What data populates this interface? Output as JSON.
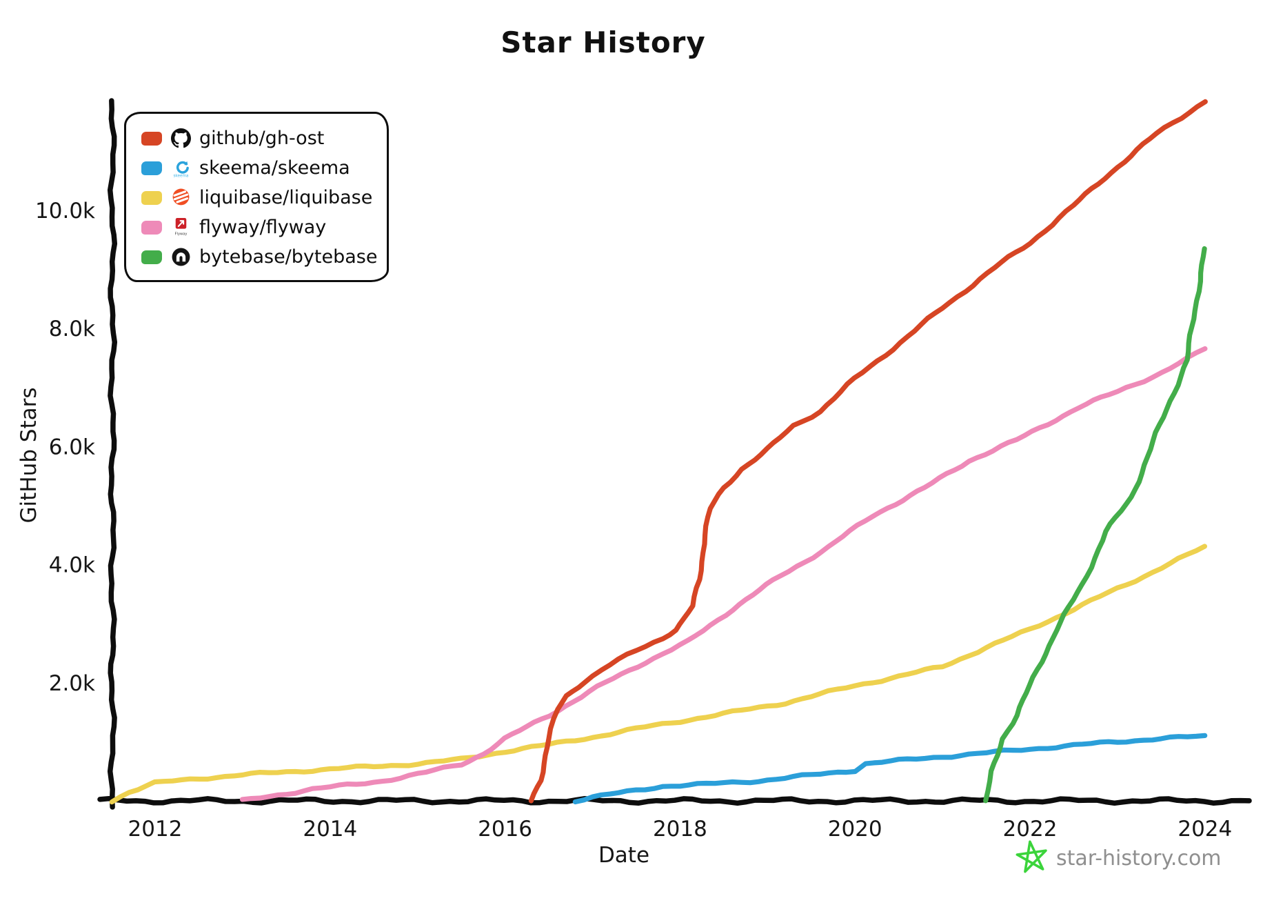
{
  "title": "Star History",
  "x_axis": {
    "label": "Date",
    "ticks": [
      "2012",
      "2014",
      "2016",
      "2018",
      "2020",
      "2022",
      "2024"
    ],
    "tick_values": [
      2012,
      2014,
      2016,
      2018,
      2020,
      2022,
      2024
    ]
  },
  "y_axis": {
    "label": "GitHub Stars",
    "ticks": [
      "2.0k",
      "4.0k",
      "6.0k",
      "8.0k",
      "10.0k"
    ],
    "tick_values": [
      2000,
      4000,
      6000,
      8000,
      10000
    ]
  },
  "footer": {
    "site": "star-history.com",
    "star_color": "#3bd43b"
  },
  "legend": [
    {
      "repo": "github/gh-ost",
      "color": "#d64524",
      "icon": "github-icon"
    },
    {
      "repo": "skeema/skeema",
      "color": "#2b9fd9",
      "icon": "skeema-icon"
    },
    {
      "repo": "liquibase/liquibase",
      "color": "#eed14f",
      "icon": "liquibase-icon"
    },
    {
      "repo": "flyway/flyway",
      "color": "#ee8ab8",
      "icon": "flyway-icon"
    },
    {
      "repo": "bytebase/bytebase",
      "color": "#43ad4a",
      "icon": "bytebase-icon"
    }
  ],
  "chart_data": {
    "type": "line",
    "title": "Star History",
    "xlabel": "Date",
    "ylabel": "GitHub Stars",
    "x_range": [
      2011.5,
      2024.45
    ],
    "ylim": [
      0,
      12000
    ],
    "x_ticks": [
      2012,
      2014,
      2016,
      2018,
      2020,
      2022,
      2024
    ],
    "y_ticks": [
      2000,
      4000,
      6000,
      8000,
      10000
    ],
    "grid": false,
    "legend_position": "top-left",
    "series": [
      {
        "name": "liquibase/liquibase",
        "color": "#eed14f",
        "points": [
          [
            2011.5,
            0
          ],
          [
            2011.7,
            150
          ],
          [
            2012.0,
            300
          ],
          [
            2012.5,
            380
          ],
          [
            2013.0,
            440
          ],
          [
            2013.5,
            490
          ],
          [
            2014.0,
            540
          ],
          [
            2014.5,
            580
          ],
          [
            2015.0,
            630
          ],
          [
            2015.5,
            700
          ],
          [
            2016.0,
            840
          ],
          [
            2016.5,
            950
          ],
          [
            2017.0,
            1080
          ],
          [
            2017.5,
            1220
          ],
          [
            2018.0,
            1350
          ],
          [
            2018.6,
            1500
          ],
          [
            2019.2,
            1660
          ],
          [
            2020.0,
            1950
          ],
          [
            2021.0,
            2270
          ],
          [
            2021.5,
            2600
          ],
          [
            2022.0,
            2900
          ],
          [
            2022.5,
            3250
          ],
          [
            2023.1,
            3660
          ],
          [
            2023.5,
            3950
          ],
          [
            2024.0,
            4300
          ]
        ]
      },
      {
        "name": "flyway/flyway",
        "color": "#ee8ab8",
        "points": [
          [
            2013.0,
            0
          ],
          [
            2013.4,
            100
          ],
          [
            2013.8,
            200
          ],
          [
            2014.3,
            280
          ],
          [
            2014.6,
            340
          ],
          [
            2015.1,
            480
          ],
          [
            2015.5,
            620
          ],
          [
            2015.75,
            800
          ],
          [
            2016.0,
            1050
          ],
          [
            2016.5,
            1450
          ],
          [
            2017.15,
            2000
          ],
          [
            2017.6,
            2350
          ],
          [
            2018.1,
            2700
          ],
          [
            2018.6,
            3250
          ],
          [
            2019.15,
            3810
          ],
          [
            2019.7,
            4300
          ],
          [
            2020.2,
            4830
          ],
          [
            2020.8,
            5300
          ],
          [
            2021.3,
            5760
          ],
          [
            2021.85,
            6110
          ],
          [
            2022.55,
            6660
          ],
          [
            2023.0,
            6930
          ],
          [
            2023.5,
            7250
          ],
          [
            2023.8,
            7480
          ],
          [
            2024.0,
            7660
          ]
        ]
      },
      {
        "name": "skeema/skeema",
        "color": "#2b9fd9",
        "points": [
          [
            2016.8,
            0
          ],
          [
            2017.0,
            60
          ],
          [
            2017.3,
            130
          ],
          [
            2017.8,
            250
          ],
          [
            2018.3,
            280
          ],
          [
            2018.9,
            340
          ],
          [
            2019.6,
            450
          ],
          [
            2020.0,
            520
          ],
          [
            2020.12,
            630
          ],
          [
            2020.5,
            680
          ],
          [
            2021.0,
            750
          ],
          [
            2021.5,
            810
          ],
          [
            2022.0,
            880
          ],
          [
            2022.5,
            940
          ],
          [
            2023.0,
            1000
          ],
          [
            2023.5,
            1060
          ],
          [
            2024.0,
            1090
          ]
        ]
      },
      {
        "name": "github/gh-ost",
        "color": "#d64524",
        "points": [
          [
            2016.3,
            0
          ],
          [
            2016.4,
            350
          ],
          [
            2016.5,
            1050
          ],
          [
            2016.6,
            1550
          ],
          [
            2016.7,
            1780
          ],
          [
            2016.9,
            2020
          ],
          [
            2017.2,
            2300
          ],
          [
            2017.5,
            2550
          ],
          [
            2017.8,
            2760
          ],
          [
            2017.95,
            2900
          ],
          [
            2018.05,
            3080
          ],
          [
            2018.15,
            3300
          ],
          [
            2018.22,
            3750
          ],
          [
            2018.28,
            4500
          ],
          [
            2018.35,
            4950
          ],
          [
            2018.5,
            5300
          ],
          [
            2018.7,
            5620
          ],
          [
            2019.0,
            5950
          ],
          [
            2019.3,
            6350
          ],
          [
            2019.6,
            6600
          ],
          [
            2020.0,
            7150
          ],
          [
            2020.6,
            7860
          ],
          [
            2021.0,
            8350
          ],
          [
            2021.6,
            9030
          ],
          [
            2022.0,
            9450
          ],
          [
            2022.5,
            10080
          ],
          [
            2022.85,
            10550
          ],
          [
            2023.45,
            11300
          ],
          [
            2024.0,
            11850
          ]
        ]
      },
      {
        "name": "bytebase/bytebase",
        "color": "#43ad4a",
        "points": [
          [
            2021.5,
            0
          ],
          [
            2021.57,
            500
          ],
          [
            2021.68,
            1050
          ],
          [
            2021.85,
            1450
          ],
          [
            2022.0,
            1950
          ],
          [
            2022.3,
            2900
          ],
          [
            2022.6,
            3660
          ],
          [
            2022.87,
            4560
          ],
          [
            2023.16,
            5140
          ],
          [
            2023.45,
            6230
          ],
          [
            2023.6,
            6770
          ],
          [
            2023.8,
            7470
          ],
          [
            2023.88,
            8300
          ],
          [
            2023.94,
            8800
          ],
          [
            2024.0,
            9350
          ]
        ]
      }
    ]
  }
}
